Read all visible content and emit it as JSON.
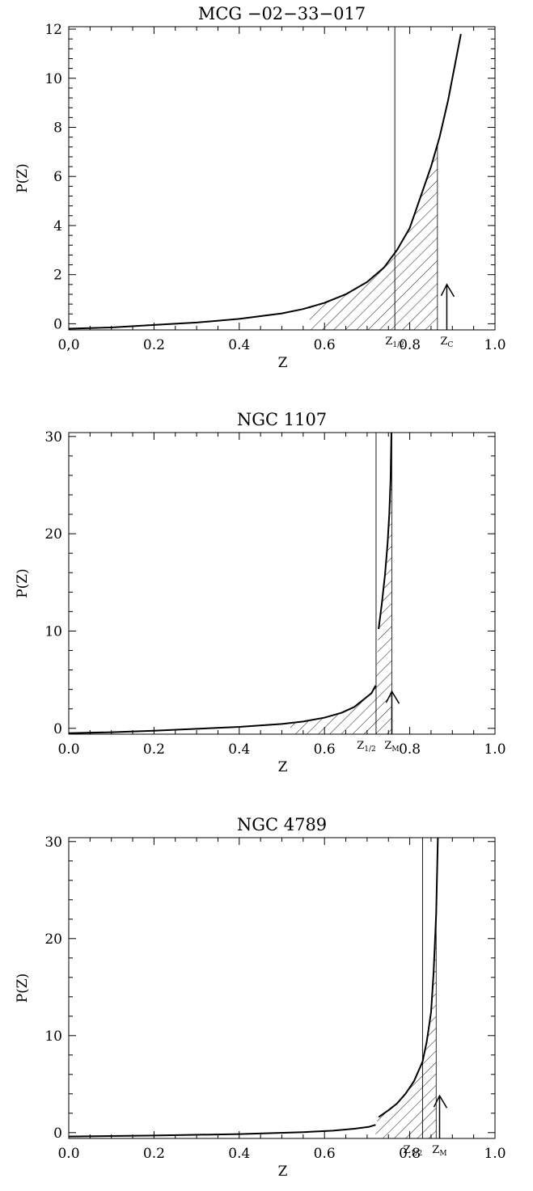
{
  "chart_data": [
    {
      "type": "line",
      "title": "MCG −02−33−017",
      "xlabel": "Z",
      "ylabel": "P(Z)",
      "xlim": [
        0.0,
        1.0
      ],
      "ylim": [
        -0.25,
        12.1
      ],
      "x_tick_labels": [
        "0,0",
        "0.2",
        "0.4",
        "0.6",
        "0.8",
        "1.0"
      ],
      "y_ticks": [
        0,
        2,
        4,
        6,
        8,
        10,
        12
      ],
      "y_tick_labels": [
        "0",
        "2",
        "4",
        "6",
        "8",
        "10",
        "12"
      ],
      "series": [
        {
          "x": [
            0.0,
            0.1,
            0.2,
            0.3,
            0.4,
            0.5,
            0.55,
            0.6,
            0.65,
            0.7,
            0.74,
            0.77,
            0.8,
            0.82,
            0.85,
            0.87,
            0.89,
            0.91,
            0.92
          ],
          "values": [
            -0.2,
            -0.15,
            -0.05,
            0.05,
            0.2,
            0.42,
            0.6,
            0.85,
            1.2,
            1.7,
            2.3,
            3.0,
            3.9,
            4.9,
            6.4,
            7.6,
            9.1,
            10.9,
            11.8
          ]
        }
      ],
      "shaded_region": [
        0.565,
        0.865
      ],
      "markers": [
        {
          "label_main": "Z",
          "label_sub": "1/2",
          "x": 0.765,
          "kind": "line"
        },
        {
          "label_main": "Z",
          "label_sub": "C",
          "x": 0.887,
          "kind": "arrow",
          "arrow_top": 1.6
        }
      ]
    },
    {
      "type": "line",
      "title": "NGC 1107",
      "xlabel": "Z",
      "ylabel": "P(Z)",
      "xlim": [
        0.0,
        1.0
      ],
      "ylim": [
        -0.6,
        30.4
      ],
      "x_tick_labels": [
        "0.0",
        "0.2",
        "0.4",
        "0.6",
        "0.8",
        "1.0"
      ],
      "y_ticks": [
        0,
        10,
        20,
        30
      ],
      "y_tick_labels": [
        "0",
        "10",
        "20",
        "30"
      ],
      "series": [
        {
          "x": [
            0.0,
            0.1,
            0.2,
            0.3,
            0.4,
            0.5,
            0.55,
            0.6,
            0.64,
            0.67,
            0.69,
            0.71,
            0.72
          ],
          "values": [
            -0.5,
            -0.4,
            -0.25,
            -0.05,
            0.15,
            0.45,
            0.7,
            1.1,
            1.6,
            2.2,
            2.9,
            3.6,
            4.4
          ]
        },
        {
          "x": [
            0.727,
            0.735,
            0.742,
            0.748,
            0.752,
            0.755,
            0.757
          ],
          "values": [
            10.2,
            13.0,
            15.8,
            19.0,
            22.0,
            25.5,
            30.4
          ]
        }
      ],
      "shaded_region": [
        0.52,
        0.758
      ],
      "markers": [
        {
          "label_main": "Z",
          "label_sub": "1/2",
          "x": 0.721,
          "kind": "line"
        },
        {
          "label_main": "Z",
          "label_sub": "M",
          "x": 0.758,
          "kind": "arrow",
          "arrow_top": 3.8
        }
      ]
    },
    {
      "type": "line",
      "title": "NGC 4789",
      "xlabel": "Z",
      "ylabel": "P(Z)",
      "xlim": [
        0.0,
        1.0
      ],
      "ylim": [
        -0.6,
        30.4
      ],
      "x_tick_labels": [
        "0.0",
        "0.2",
        "0.4",
        "0.6",
        "0.8",
        "1.0"
      ],
      "y_ticks": [
        0,
        10,
        20,
        30
      ],
      "y_tick_labels": [
        "0",
        "10",
        "20",
        "30"
      ],
      "series": [
        {
          "x": [
            0.0,
            0.2,
            0.4,
            0.55,
            0.62,
            0.67,
            0.705,
            0.72
          ],
          "values": [
            -0.4,
            -0.3,
            -0.15,
            0.05,
            0.2,
            0.4,
            0.6,
            0.8
          ]
        },
        {
          "x": [
            0.727,
            0.75,
            0.77,
            0.79,
            0.81,
            0.83,
            0.84,
            0.85,
            0.856,
            0.862,
            0.866
          ],
          "values": [
            1.6,
            2.3,
            3.0,
            4.0,
            5.3,
            7.3,
            9.4,
            12.4,
            16.5,
            22.5,
            30.4
          ]
        }
      ],
      "shaded_region": [
        0.72,
        0.862
      ],
      "markers": [
        {
          "label_main": "Z",
          "label_sub": "1/2",
          "x": 0.83,
          "kind": "line"
        },
        {
          "label_main": "Z",
          "label_sub": "M",
          "x": 0.87,
          "kind": "arrow",
          "arrow_top": 3.8
        }
      ]
    }
  ]
}
